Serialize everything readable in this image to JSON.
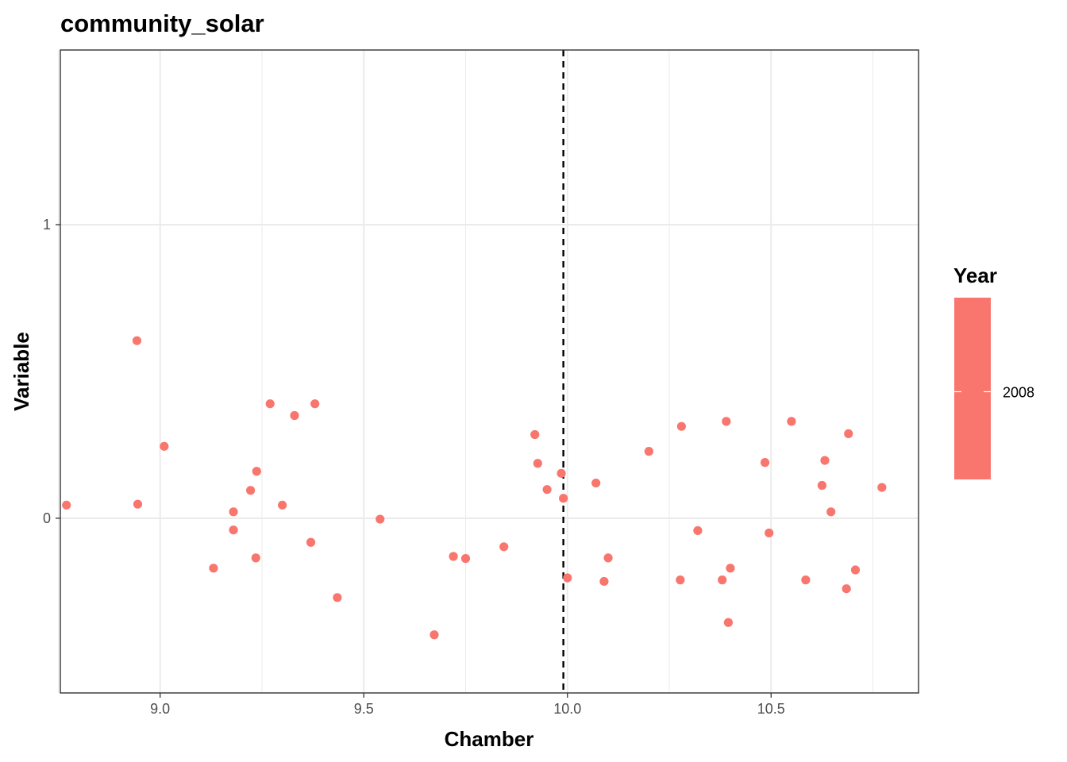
{
  "chart_data": {
    "type": "scatter",
    "title": "community_solar",
    "xlabel": "Chamber",
    "ylabel": "Variable",
    "xlim": [
      8.755,
      10.862
    ],
    "ylim": [
      -0.595,
      1.595
    ],
    "xticks": [
      {
        "value": 9.0,
        "label": "9.0"
      },
      {
        "value": 9.5,
        "label": "9.5"
      },
      {
        "value": 10.0,
        "label": "10.0"
      },
      {
        "value": 10.5,
        "label": "10.5"
      }
    ],
    "yticks": [
      {
        "value": 0,
        "label": "0"
      },
      {
        "value": 1,
        "label": "1"
      }
    ],
    "x_minor_gridlines": [
      8.75,
      9.25,
      9.75,
      10.25,
      10.75
    ],
    "y_minor_gridlines": [],
    "grid": true,
    "vline": {
      "x": 9.99,
      "style": "dashed",
      "color": "#000000"
    },
    "point_color": "#F8766D",
    "legend": {
      "title": "Year",
      "position": "right",
      "type": "colorbar",
      "labels": [
        {
          "value": 2008,
          "label": "2008"
        }
      ]
    },
    "series": [
      {
        "year": 2008,
        "points": [
          {
            "x": 8.77,
            "y": 0.045
          },
          {
            "x": 8.943,
            "y": 0.605
          },
          {
            "x": 8.945,
            "y": 0.048
          },
          {
            "x": 9.01,
            "y": 0.245
          },
          {
            "x": 9.131,
            "y": -0.17
          },
          {
            "x": 9.18,
            "y": 0.022
          },
          {
            "x": 9.18,
            "y": -0.04
          },
          {
            "x": 9.222,
            "y": 0.095
          },
          {
            "x": 9.235,
            "y": -0.135
          },
          {
            "x": 9.237,
            "y": 0.16
          },
          {
            "x": 9.27,
            "y": 0.39
          },
          {
            "x": 9.3,
            "y": 0.045
          },
          {
            "x": 9.33,
            "y": 0.35
          },
          {
            "x": 9.37,
            "y": -0.082
          },
          {
            "x": 9.38,
            "y": 0.39
          },
          {
            "x": 9.435,
            "y": -0.27
          },
          {
            "x": 9.54,
            "y": -0.003
          },
          {
            "x": 9.673,
            "y": -0.397
          },
          {
            "x": 9.72,
            "y": -0.13
          },
          {
            "x": 9.75,
            "y": -0.137
          },
          {
            "x": 9.844,
            "y": -0.097
          },
          {
            "x": 9.92,
            "y": 0.285
          },
          {
            "x": 9.927,
            "y": 0.187
          },
          {
            "x": 9.95,
            "y": 0.098
          },
          {
            "x": 9.985,
            "y": 0.153
          },
          {
            "x": 9.99,
            "y": 0.068
          },
          {
            "x": 10.0,
            "y": -0.203
          },
          {
            "x": 10.07,
            "y": 0.12
          },
          {
            "x": 10.09,
            "y": -0.215
          },
          {
            "x": 10.1,
            "y": -0.135
          },
          {
            "x": 10.2,
            "y": 0.228
          },
          {
            "x": 10.277,
            "y": -0.21
          },
          {
            "x": 10.28,
            "y": 0.313
          },
          {
            "x": 10.32,
            "y": -0.042
          },
          {
            "x": 10.38,
            "y": -0.21
          },
          {
            "x": 10.39,
            "y": 0.33
          },
          {
            "x": 10.395,
            "y": -0.355
          },
          {
            "x": 10.4,
            "y": -0.17
          },
          {
            "x": 10.485,
            "y": 0.19
          },
          {
            "x": 10.495,
            "y": -0.05
          },
          {
            "x": 10.55,
            "y": 0.33
          },
          {
            "x": 10.585,
            "y": -0.21
          },
          {
            "x": 10.625,
            "y": 0.112
          },
          {
            "x": 10.632,
            "y": 0.197
          },
          {
            "x": 10.647,
            "y": 0.022
          },
          {
            "x": 10.685,
            "y": -0.24
          },
          {
            "x": 10.69,
            "y": 0.288
          },
          {
            "x": 10.707,
            "y": -0.176
          },
          {
            "x": 10.772,
            "y": 0.105
          }
        ]
      }
    ]
  }
}
